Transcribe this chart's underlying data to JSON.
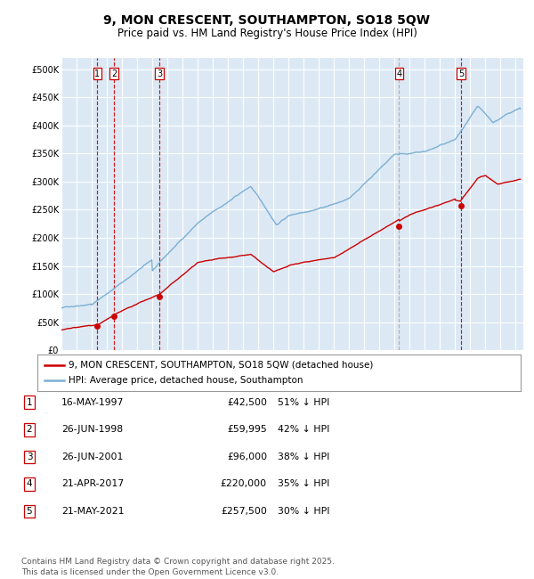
{
  "title": "9, MON CRESCENT, SOUTHAMPTON, SO18 5QW",
  "subtitle": "Price paid vs. HM Land Registry's House Price Index (HPI)",
  "title_fontsize": 10,
  "subtitle_fontsize": 8.5,
  "background_color": "#ffffff",
  "plot_bg_color": "#dce9f5",
  "grid_color": "#ffffff",
  "ylim": [
    0,
    520000
  ],
  "yticks": [
    0,
    50000,
    100000,
    150000,
    200000,
    250000,
    300000,
    350000,
    400000,
    450000,
    500000
  ],
  "ytick_labels": [
    "£0",
    "£50K",
    "£100K",
    "£150K",
    "£200K",
    "£250K",
    "£300K",
    "£350K",
    "£400K",
    "£450K",
    "£500K"
  ],
  "xlim_start": 1995.0,
  "xlim_end": 2025.5,
  "xticks": [
    1995,
    1996,
    1997,
    1998,
    1999,
    2000,
    2001,
    2002,
    2003,
    2004,
    2005,
    2006,
    2007,
    2008,
    2009,
    2010,
    2011,
    2012,
    2013,
    2014,
    2015,
    2016,
    2017,
    2018,
    2019,
    2020,
    2021,
    2022,
    2023,
    2024,
    2025
  ],
  "sale_color": "#cc0000",
  "hpi_color": "#7bafd4",
  "vline_color_red": "#cc0000",
  "vline_color_gray": "#aaaaaa",
  "legend_sale_label": "9, MON CRESCENT, SOUTHAMPTON, SO18 5QW (detached house)",
  "legend_hpi_label": "HPI: Average price, detached house, Southampton",
  "sales": [
    {
      "num": 1,
      "date": 1997.37,
      "price": 42500,
      "label": "1",
      "vline": "red"
    },
    {
      "num": 2,
      "date": 1998.48,
      "price": 59995,
      "label": "2",
      "vline": "red"
    },
    {
      "num": 3,
      "date": 2001.48,
      "price": 96000,
      "label": "3",
      "vline": "red"
    },
    {
      "num": 4,
      "date": 2017.3,
      "price": 220000,
      "label": "4",
      "vline": "gray"
    },
    {
      "num": 5,
      "date": 2021.38,
      "price": 257500,
      "label": "5",
      "vline": "red"
    }
  ],
  "table_rows": [
    {
      "num": "1",
      "date": "16-MAY-1997",
      "price": "£42,500",
      "hpi": "51% ↓ HPI"
    },
    {
      "num": "2",
      "date": "26-JUN-1998",
      "price": "£59,995",
      "hpi": "42% ↓ HPI"
    },
    {
      "num": "3",
      "date": "26-JUN-2001",
      "price": "£96,000",
      "hpi": "38% ↓ HPI"
    },
    {
      "num": "4",
      "date": "21-APR-2017",
      "price": "£220,000",
      "hpi": "35% ↓ HPI"
    },
    {
      "num": "5",
      "date": "21-MAY-2021",
      "price": "£257,500",
      "hpi": "30% ↓ HPI"
    }
  ],
  "footer": "Contains HM Land Registry data © Crown copyright and database right 2025.\nThis data is licensed under the Open Government Licence v3.0.",
  "footer_fontsize": 6.5
}
